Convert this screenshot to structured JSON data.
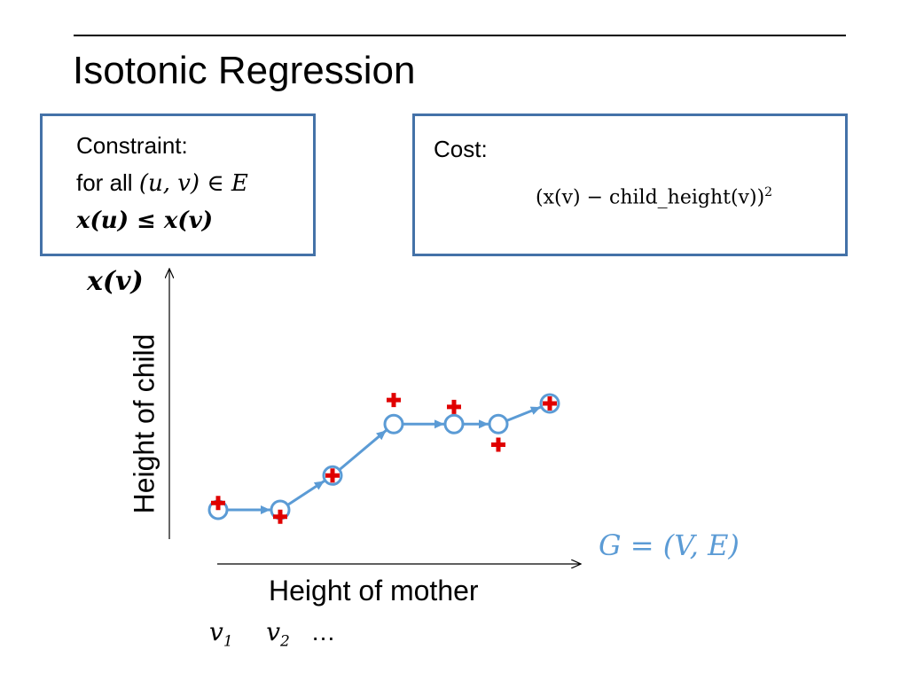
{
  "title": "Isotonic Regression",
  "constraint_box": {
    "line1": "Constraint:",
    "line2_prefix": "for all ",
    "line2_math": "(u, v) ∈ E",
    "line3_math": "x(u) ≤ x(v)"
  },
  "cost_box": {
    "label": "Cost:",
    "formula": "(x(v) − child_height(v))",
    "formula_exp": "2"
  },
  "axes": {
    "y_label": "Height of child",
    "x_label": "Height of mother",
    "y_var": "x(v)"
  },
  "graph_label": "G = (V, E)",
  "vertex_labels": {
    "v1": "v",
    "v1_sub": "1",
    "v2": "v",
    "v2_sub": "2",
    "ellipsis": "…"
  },
  "colors": {
    "fitted": "#5b9bd5",
    "observed": "#e00000",
    "box_border": "#4472a8"
  },
  "chart_data": {
    "type": "scatter",
    "fitted_points": [
      {
        "x": 1,
        "y": 1.0
      },
      {
        "x": 2,
        "y": 1.0
      },
      {
        "x": 3,
        "y": 2.0
      },
      {
        "x": 4,
        "y": 3.5
      },
      {
        "x": 5,
        "y": 3.5
      },
      {
        "x": 6,
        "y": 3.5
      },
      {
        "x": 7,
        "y": 4.1
      }
    ],
    "observed_points": [
      {
        "x": 1,
        "y": 1.2
      },
      {
        "x": 2,
        "y": 0.8
      },
      {
        "x": 3,
        "y": 2.0
      },
      {
        "x": 4,
        "y": 4.2
      },
      {
        "x": 5,
        "y": 4.0
      },
      {
        "x": 6,
        "y": 2.9
      },
      {
        "x": 7,
        "y": 4.1
      }
    ],
    "edges": [
      [
        1,
        2
      ],
      [
        2,
        3
      ],
      [
        3,
        4
      ],
      [
        4,
        5
      ],
      [
        5,
        6
      ],
      [
        6,
        7
      ]
    ]
  }
}
